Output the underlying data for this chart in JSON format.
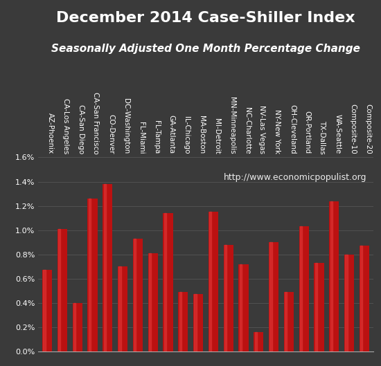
{
  "title": "December 2014 Case-Shiller Index",
  "subtitle": "Seasonally Adjusted One Month Percentage Change",
  "watermark": "http://www.economicpopulist.org",
  "categories": [
    "AZ-Phoenix",
    "CA-Los Angeles",
    "CA-San Diego",
    "CA-San Francisco",
    "CO-Denver",
    "DC-Washington",
    "FL-Miami",
    "FL-Tampa",
    "GA-Atlanta",
    "IL-Chicago",
    "MA-Boston",
    "MI-Detroit",
    "MN-Minneapolis",
    "NC-Charlotte",
    "NV-Las Vegas",
    "NY-New York",
    "OH-Cleveland",
    "OR-Portland",
    "TX-Dallas",
    "WA-Seattle",
    "Composite-10",
    "Composite-20"
  ],
  "values": [
    0.0067,
    0.0101,
    0.004,
    0.0126,
    0.0138,
    0.007,
    0.0093,
    0.0081,
    0.0114,
    0.0049,
    0.0047,
    0.0115,
    0.0088,
    0.0072,
    0.0016,
    0.009,
    0.0049,
    0.0103,
    0.0073,
    0.0124,
    0.008,
    0.0087
  ],
  "bar_color_main": "#bb1111",
  "bar_color_highlight": "#dd3333",
  "background_color": "#3a3a3a",
  "text_color": "#ffffff",
  "grid_color": "#555555",
  "ylim": [
    0,
    0.016
  ],
  "yticks": [
    0.0,
    0.002,
    0.004,
    0.006,
    0.008,
    0.01,
    0.012,
    0.014,
    0.016
  ],
  "title_fontsize": 16,
  "subtitle_fontsize": 11,
  "tick_fontsize": 8,
  "xlabel_fontsize": 7.5,
  "watermark_fontsize": 9
}
